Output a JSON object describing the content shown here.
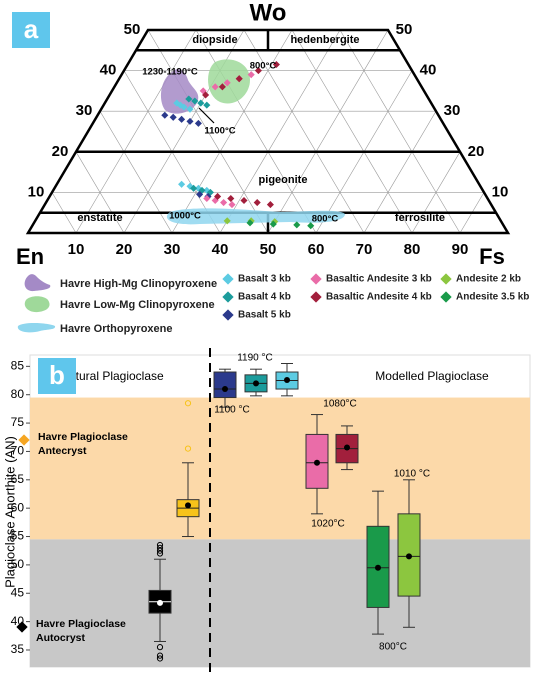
{
  "chart_data": [
    {
      "type": "ternary",
      "panel_label": "a",
      "apex": "Wo",
      "left": "En",
      "right": "Fs",
      "wo_ticks": [
        10,
        20,
        30,
        40,
        50
      ],
      "fs_ticks": [
        10,
        20,
        30,
        40,
        50,
        60,
        70,
        80,
        90
      ],
      "region_labels": [
        "diopside",
        "hedenbergite",
        "pigeonite",
        "enstatite",
        "ferrosilite"
      ],
      "annotations": [
        "1230-1190°C",
        "800°C",
        "1100°C",
        "1000°C",
        "800°C"
      ],
      "fields": [
        {
          "name": "Havre High-Mg Clinopyroxene",
          "color": "#a48ac6"
        },
        {
          "name": "Havre Low-Mg Clinopyroxene",
          "color": "#9fd99a"
        },
        {
          "name": "Havre Orthopyroxene",
          "color": "#8fd6ee"
        }
      ],
      "series": [
        {
          "name": "Basalt 3 kb",
          "color": "#5ccbe2",
          "wo": [
            32,
            31.5,
            31,
            30.5,
            12,
            11.5,
            11,
            10.5
          ],
          "fs": [
            15,
            16,
            17,
            18.5,
            26,
            28,
            30,
            32
          ]
        },
        {
          "name": "Basalt 4 kb",
          "color": "#1c9c9c",
          "wo": [
            33,
            32.5,
            32,
            31.5,
            11,
            10.5,
            10
          ],
          "fs": [
            17,
            18.5,
            20,
            21.5,
            29,
            31,
            33
          ]
        },
        {
          "name": "Basalt 5 kb",
          "color": "#2b3a8c",
          "wo": [
            29,
            28.5,
            28,
            27.5,
            27,
            9.5,
            9
          ],
          "fs": [
            14,
            16,
            18,
            20,
            22,
            31,
            33
          ]
        },
        {
          "name": "Basaltic Andesite 3 kb",
          "color": "#ea6ca8",
          "wo": [
            35,
            36,
            37,
            38,
            39,
            8.5,
            8,
            7.5,
            7
          ],
          "fs": [
            19,
            21,
            23,
            25,
            27,
            33,
            35,
            37,
            39
          ]
        },
        {
          "name": "Basaltic Andesite 4 kb",
          "color": "#a21f3c",
          "wo": [
            34,
            36,
            38,
            40,
            41.5,
            9,
            8.5,
            8,
            7.5,
            7
          ],
          "fs": [
            20,
            22.5,
            25,
            28,
            31,
            35,
            38,
            41,
            44,
            47
          ]
        },
        {
          "name": "Andesite 2 kb",
          "color": "#8cc63f",
          "wo": [
            3,
            3,
            2.8
          ],
          "fs": [
            40,
            45,
            50
          ]
        },
        {
          "name": "Andesite 3.5 kb",
          "color": "#1a9a4a",
          "wo": [
            2.5,
            2.2,
            2,
            1.8
          ],
          "fs": [
            45,
            50,
            55,
            58
          ]
        }
      ]
    },
    {
      "type": "box",
      "panel_label": "b",
      "ylabel": "Plagioclase Anorthite (AN)",
      "ylim": [
        32,
        87
      ],
      "yticks": [
        35,
        40,
        45,
        50,
        55,
        60,
        65,
        70,
        75,
        80,
        85
      ],
      "bands": [
        {
          "from": 54.5,
          "to": 79.5,
          "color": "#fcd9a9"
        },
        {
          "from": 32,
          "to": 54.5,
          "color": "#c8c8c8"
        }
      ],
      "group_labels": [
        "Natural Plagioclase",
        "Modelled Plagioclase"
      ],
      "legend": [
        {
          "lines": [
            "Havre Plagioclase",
            "Antecryst"
          ],
          "color": "#f5a623"
        },
        {
          "lines": [
            "Havre Plagioclase",
            "Autocryst"
          ],
          "color": "#000000"
        }
      ],
      "annotations": [
        "1190 °C",
        "1100 °C",
        "1080°C",
        "1020°C",
        "1010 °C",
        "800°C"
      ],
      "boxes": [
        {
          "color": "#000000",
          "min": 36.5,
          "q1": 41.5,
          "median": 43.5,
          "q3": 45.5,
          "max": 51,
          "mean": 43.3,
          "outliers": [
            52,
            52.5,
            53,
            53.5,
            35.5,
            34,
            33.5
          ]
        },
        {
          "color": "#f7c31a",
          "min": 55,
          "q1": 58.5,
          "median": 60,
          "q3": 61.5,
          "max": 68,
          "mean": 60.5,
          "outliers": [
            70.5,
            78.5
          ]
        },
        {
          "color": "#2b3a8c",
          "min": 77.8,
          "q1": 79.5,
          "median": 81,
          "q3": 84,
          "max": 84.5,
          "mean": 81
        },
        {
          "color": "#1c9c9c",
          "min": 79.8,
          "q1": 80.5,
          "median": 82,
          "q3": 83.5,
          "max": 84.5,
          "mean": 82
        },
        {
          "color": "#5ccbe2",
          "min": 79.8,
          "q1": 81,
          "median": 82.5,
          "q3": 84,
          "max": 85.5,
          "mean": 82.6
        },
        {
          "color": "#ea6ca8",
          "min": 59,
          "q1": 63.5,
          "median": 68,
          "q3": 73,
          "max": 76.5,
          "mean": 68
        },
        {
          "color": "#a21f3c",
          "min": 66.8,
          "q1": 68,
          "median": 70.5,
          "q3": 73,
          "max": 74.5,
          "mean": 70.7
        },
        {
          "color": "#1a9a4a",
          "min": 37.8,
          "q1": 42.5,
          "median": 49.5,
          "q3": 56.8,
          "max": 63,
          "mean": 49.5
        },
        {
          "color": "#8cc63f",
          "min": 39,
          "q1": 44.5,
          "median": 51.5,
          "q3": 59,
          "max": 65,
          "mean": 51.5
        }
      ]
    }
  ]
}
